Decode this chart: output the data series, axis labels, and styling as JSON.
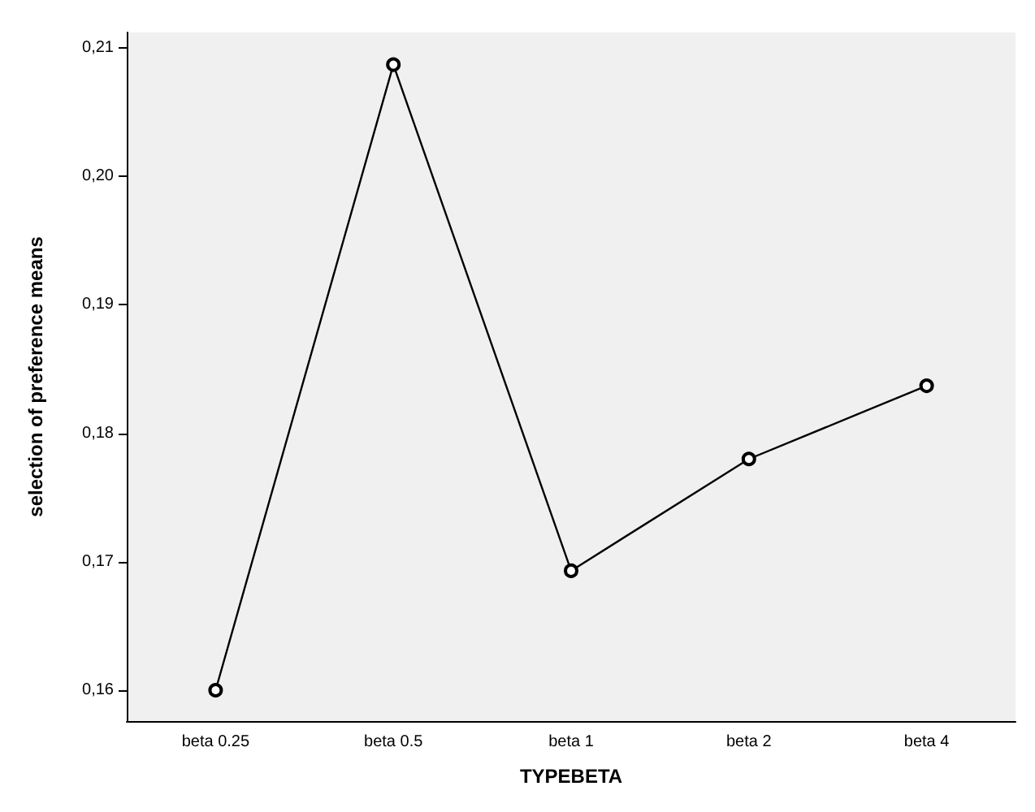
{
  "chart_data": {
    "type": "line",
    "xlabel": "TYPEBETA",
    "ylabel": "selection of preference means",
    "categories": [
      "beta 0.25",
      "beta 0.5",
      "beta 1",
      "beta 2",
      "beta 4"
    ],
    "series": [
      {
        "color": "#000000",
        "values": [
          0.16,
          0.2087,
          0.1693,
          0.178,
          0.1837
        ]
      }
    ],
    "ylim": [
      0.1576,
      0.2112
    ],
    "yticks": [
      {
        "value": 0.16,
        "label": "0,16"
      },
      {
        "value": 0.17,
        "label": "0,17"
      },
      {
        "value": 0.18,
        "label": "0,18"
      },
      {
        "value": 0.19,
        "label": "0,19"
      },
      {
        "value": 0.2,
        "label": "0,20"
      },
      {
        "value": 0.21,
        "label": "0,21"
      }
    ],
    "grid": false,
    "marker": "circle",
    "line_style": "solid"
  }
}
